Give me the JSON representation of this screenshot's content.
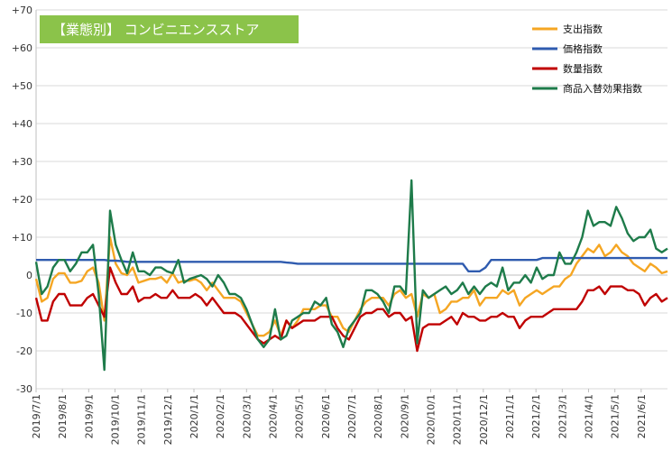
{
  "chart_data": {
    "type": "line",
    "title": "【業態別】 コンビニエンスストア",
    "xlabel": "",
    "ylabel": "",
    "ylim": [
      -30,
      70
    ],
    "yticks": [
      "+70",
      "+60",
      "+50",
      "+40",
      "+30",
      "+20",
      "+10",
      "0",
      "-10",
      "-20",
      "-30"
    ],
    "xticks": [
      "2019/7/1",
      "2019/8/1",
      "2019/9/1",
      "2019/10/1",
      "2019/11/1",
      "2019/12/1",
      "2020/1/1",
      "2020/2/1",
      "2020/3/1",
      "2020/4/1",
      "2020/5/1",
      "2020/6/1",
      "2020/7/1",
      "2020/8/1",
      "2020/9/1",
      "2020/10/1",
      "2020/11/1",
      "2020/12/1",
      "2021/1/1",
      "2021/2/1",
      "2021/3/1",
      "2021/4/1",
      "2021/5/1",
      "2021/6/1"
    ],
    "grid": true,
    "legend_position": "top-right",
    "x_start": "2019/7/1",
    "x_step": "1 week",
    "series": [
      {
        "name": "支出指数",
        "color": "#F5A623",
        "values": [
          -1,
          -7,
          -6,
          -1,
          0.5,
          0.5,
          -2,
          -2,
          -1.5,
          1,
          2,
          -2,
          -12,
          10,
          3,
          0.5,
          0,
          2,
          -2,
          -1.5,
          -1,
          -1,
          -0.5,
          -2,
          0.5,
          -2,
          -1.5,
          -1.5,
          -1,
          -2,
          -4,
          -2,
          -4,
          -6,
          -6,
          -6,
          -7,
          -10,
          -13,
          -16,
          -16,
          -15,
          -12,
          -16,
          -12,
          -14,
          -12,
          -9,
          -9,
          -9,
          -8,
          -8,
          -11,
          -11,
          -14,
          -15,
          -12,
          -9,
          -7,
          -6,
          -6,
          -6,
          -8,
          -5,
          -4,
          -6,
          -5,
          -11,
          -5,
          -6,
          -5,
          -10,
          -9,
          -7,
          -7,
          -6,
          -6,
          -4,
          -8,
          -6,
          -6,
          -6,
          -4,
          -5,
          -4,
          -8,
          -6,
          -5,
          -4,
          -5,
          -4,
          -3,
          -3,
          -1,
          0,
          3,
          5,
          7,
          6,
          8,
          5,
          6,
          8,
          6,
          5,
          3,
          2,
          1,
          3,
          2,
          0.5,
          1
        ]
      },
      {
        "name": "価格指数",
        "color": "#2F5BAF",
        "values": [
          4,
          4,
          4,
          4,
          4,
          4,
          4,
          4,
          4,
          4,
          4,
          4,
          4,
          3.8,
          3.8,
          3.7,
          3.5,
          3.5,
          3.5,
          3.5,
          3.5,
          3.5,
          3.5,
          3.5,
          3.5,
          3.5,
          3.5,
          3.5,
          3.5,
          3.5,
          3.5,
          3.5,
          3.5,
          3.5,
          3.5,
          3.5,
          3.5,
          3.5,
          3.5,
          3.5,
          3.5,
          3.5,
          3.5,
          3.5,
          3.3,
          3.2,
          3,
          3,
          3,
          3,
          3,
          3,
          3,
          3,
          3,
          3,
          3,
          3,
          3,
          3,
          3,
          3,
          3,
          3,
          3,
          3,
          3,
          3,
          3,
          3,
          3,
          3,
          3,
          3,
          3,
          3,
          1,
          1,
          1,
          2,
          4,
          4,
          4,
          4,
          4,
          4,
          4,
          4,
          4,
          4.5,
          4.5,
          4.5,
          4.5,
          4.5,
          4.5,
          4.5,
          4.5,
          4.5,
          4.5,
          4.5,
          4.5,
          4.5,
          4.5,
          4.5,
          4.5,
          4.5,
          4.5,
          4.5,
          4.5,
          4.5,
          4.5,
          4.5
        ]
      },
      {
        "name": "数量指数",
        "color": "#C00000",
        "values": [
          -6,
          -12,
          -12,
          -7,
          -5,
          -5,
          -8,
          -8,
          -8,
          -6,
          -5,
          -8,
          -11,
          2,
          -2,
          -5,
          -5,
          -3,
          -7,
          -6,
          -6,
          -5,
          -6,
          -6,
          -4,
          -6,
          -6,
          -6,
          -5,
          -6,
          -8,
          -6,
          -8,
          -10,
          -10,
          -10,
          -11,
          -13,
          -15,
          -17,
          -18,
          -17,
          -16,
          -17,
          -12,
          -14,
          -13,
          -12,
          -12,
          -12,
          -11,
          -11,
          -11,
          -14,
          -16,
          -17,
          -14,
          -11,
          -10,
          -10,
          -9,
          -9,
          -11,
          -10,
          -10,
          -12,
          -11,
          -20,
          -14,
          -13,
          -13,
          -13,
          -12,
          -11,
          -13,
          -10,
          -11,
          -11,
          -12,
          -12,
          -11,
          -11,
          -10,
          -11,
          -11,
          -14,
          -12,
          -11,
          -11,
          -11,
          -10,
          -9,
          -9,
          -9,
          -9,
          -9,
          -7,
          -4,
          -4,
          -3,
          -5,
          -3,
          -3,
          -3,
          -4,
          -4,
          -5,
          -8,
          -6,
          -5,
          -7,
          -6
        ]
      },
      {
        "name": "商品入替効果指数",
        "color": "#1E7B4A",
        "values": [
          3.5,
          -5,
          -3,
          2,
          4,
          4,
          1,
          3,
          6,
          6,
          8,
          -5,
          -25,
          17,
          8,
          4,
          0.5,
          6,
          1,
          1,
          0,
          2,
          2,
          1,
          0.5,
          4,
          -2,
          -1,
          -0.5,
          0,
          -1,
          -3,
          0,
          -2,
          -5,
          -5,
          -6,
          -9,
          -13,
          -17,
          -19,
          -17,
          -9,
          -17,
          -16,
          -12,
          -11,
          -10,
          -10,
          -7,
          -8,
          -6,
          -13,
          -15,
          -19,
          -14,
          -12,
          -10,
          -4,
          -4,
          -5,
          -7,
          -10,
          -3,
          -3,
          -5,
          25,
          -18,
          -4,
          -6,
          -5,
          -4,
          -3,
          -5,
          -4,
          -2,
          -5,
          -3,
          -5,
          -3,
          -2,
          -3,
          2,
          -4,
          -2,
          -2,
          0,
          -2,
          2,
          -1,
          0,
          0,
          6,
          3,
          3,
          6,
          10,
          17,
          13,
          14,
          14,
          13,
          18,
          15,
          11,
          9,
          10,
          10,
          12,
          7,
          6,
          7
        ]
      }
    ]
  }
}
